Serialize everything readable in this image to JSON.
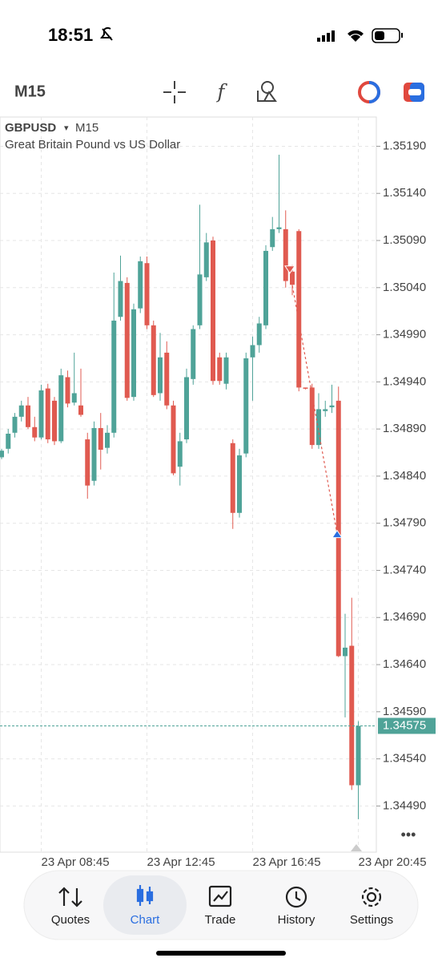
{
  "status_bar": {
    "time": "18:51"
  },
  "toolbar": {
    "timeframe": "M15"
  },
  "chart_data": {
    "type": "candlestick",
    "title": "GBPUSD",
    "timeframe": "M15",
    "subtitle": "Great Britain Pound vs US Dollar",
    "categories": [
      null,
      null,
      null,
      null,
      null,
      null,
      "23 Apr 08:45",
      null,
      null,
      null,
      null,
      null,
      null,
      null,
      null,
      null,
      null,
      null,
      null,
      null,
      null,
      null,
      "23 Apr 12:45",
      null,
      null,
      null,
      null,
      null,
      null,
      null,
      null,
      null,
      null,
      null,
      null,
      null,
      null,
      null,
      "23 Apr 16:45",
      null,
      null,
      null,
      null,
      null,
      null,
      null,
      null,
      null,
      null,
      null,
      null,
      null,
      null,
      null,
      "23 Apr 20:45"
    ],
    "open": [
      1.3486,
      1.34869,
      1.34886,
      1.34903,
      1.34915,
      1.34892,
      1.34881,
      1.34933,
      1.3492,
      1.34877,
      1.34945,
      1.34918,
      1.34915,
      1.34879,
      1.34835,
      1.34891,
      1.3487,
      1.34886,
      1.35009,
      1.35045,
      1.34924,
      1.35018,
      1.35066,
      1.35,
      1.34928,
      1.34971,
      1.34915,
      1.3485,
      1.34879,
      1.34943,
      1.35,
      1.35051,
      1.3509,
      1.34966,
      1.34938,
      1.34875,
      1.34801,
      1.34864,
      1.34966,
      1.34979,
      1.35,
      1.35083,
      1.35102,
      1.35102,
      1.35057,
      1.351,
      1.34934,
      1.34934,
      1.34873,
      1.34909,
      1.34913,
      1.3492,
      1.34649,
      1.3466,
      1.34512
    ],
    "high": [
      1.34869,
      1.3489,
      1.34907,
      1.3492,
      1.34924,
      1.34903,
      1.34937,
      1.34938,
      1.34924,
      1.34954,
      1.34952,
      1.34971,
      1.34954,
      1.34886,
      1.34898,
      1.34907,
      1.34894,
      1.35056,
      1.35074,
      1.35051,
      1.35023,
      1.35073,
      1.35073,
      1.35005,
      1.34992,
      1.34983,
      1.3492,
      1.34886,
      1.34954,
      1.35,
      1.35128,
      1.35098,
      1.35094,
      1.34971,
      1.34971,
      1.34879,
      1.34869,
      1.34971,
      1.34988,
      1.35009,
      1.35085,
      1.35115,
      1.35181,
      1.35122,
      1.35064,
      1.35102,
      1.34934,
      1.34938,
      1.34928,
      1.3492,
      1.34937,
      1.34935,
      1.34694,
      1.34711,
      1.3458
    ],
    "low": [
      1.34858,
      1.34864,
      1.34881,
      1.34898,
      1.3489,
      1.34877,
      1.34879,
      1.34875,
      1.34873,
      1.34875,
      1.34913,
      1.34915,
      1.34903,
      1.34816,
      1.3483,
      1.34847,
      1.34864,
      1.34881,
      1.35005,
      1.3492,
      1.3492,
      1.35013,
      1.34996,
      1.34924,
      1.3492,
      1.34911,
      1.34841,
      1.3483,
      1.34875,
      1.34937,
      1.34996,
      1.35047,
      1.34937,
      1.34937,
      1.34932,
      1.34784,
      1.34796,
      1.3486,
      1.3492,
      1.34971,
      1.34996,
      1.35079,
      1.35098,
      1.3504,
      1.35032,
      1.3493,
      1.34932,
      1.34869,
      1.34869,
      1.34903,
      1.34907,
      1.34648,
      1.34584,
      1.34507,
      1.34476
    ],
    "close": [
      1.34867,
      1.34885,
      1.34903,
      1.34915,
      1.34892,
      1.34881,
      1.34931,
      1.34879,
      1.34877,
      1.34947,
      1.34917,
      1.34928,
      1.34905,
      1.3483,
      1.34891,
      1.34868,
      1.34886,
      1.35005,
      1.35047,
      1.34923,
      1.35017,
      1.35068,
      1.35,
      1.34926,
      1.34966,
      1.34915,
      1.34843,
      1.34877,
      1.34945,
      1.34996,
      1.35054,
      1.35088,
      1.34941,
      1.34941,
      1.34966,
      1.34801,
      1.34862,
      1.34965,
      1.34979,
      1.35002,
      1.35079,
      1.35102,
      1.35104,
      1.35047,
      1.35043,
      1.34934,
      1.34933,
      1.34873,
      1.34911,
      1.34911,
      1.34915,
      1.34649,
      1.34658,
      1.34512,
      1.34575
    ],
    "up_color": "#4fa398",
    "down_color": "#e05a50",
    "ylim": [
      1.34441,
      1.35221
    ],
    "yticks": [
      {
        "value": 1.3519,
        "label": "1.35190"
      },
      {
        "value": 1.3514,
        "label": "1.35140"
      },
      {
        "value": 1.3509,
        "label": "1.35090"
      },
      {
        "value": 1.3504,
        "label": "1.35040"
      },
      {
        "value": 1.3499,
        "label": "1.34990"
      },
      {
        "value": 1.3494,
        "label": "1.34940"
      },
      {
        "value": 1.3489,
        "label": "1.34890"
      },
      {
        "value": 1.3484,
        "label": "1.34840"
      },
      {
        "value": 1.3479,
        "label": "1.34790"
      },
      {
        "value": 1.3474,
        "label": "1.34740"
      },
      {
        "value": 1.3469,
        "label": "1.34690"
      },
      {
        "value": 1.3464,
        "label": "1.34640"
      },
      {
        "value": 1.3459,
        "label": "1.34590"
      },
      {
        "value": 1.3454,
        "label": "1.34540"
      },
      {
        "value": 1.3449,
        "label": "1.34490"
      }
    ],
    "last_price": 1.34575,
    "trade": {
      "open": 1.35057,
      "close": 1.34779
    },
    "grid": true
  },
  "nav": {
    "items": [
      "Quotes",
      "Chart",
      "Trade",
      "History",
      "Settings"
    ],
    "active": 1
  }
}
